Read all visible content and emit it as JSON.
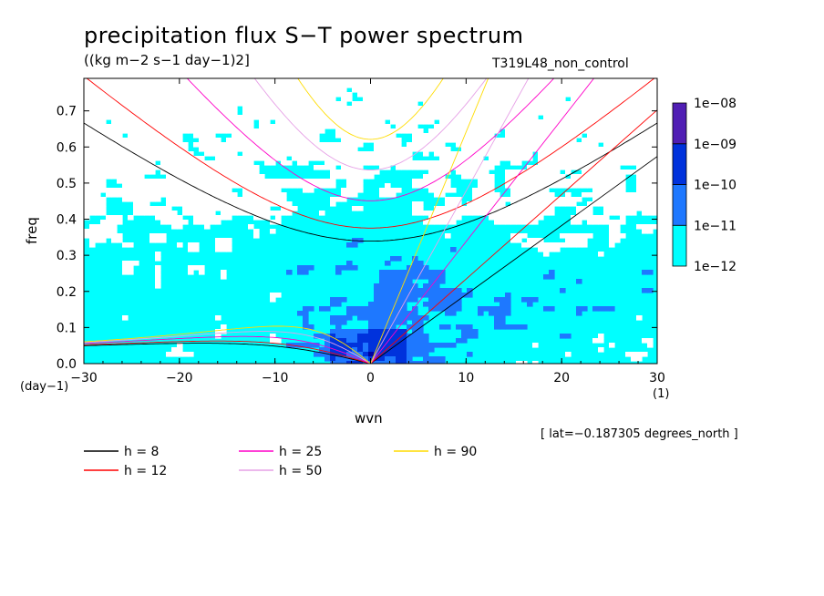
{
  "title": "precipitation flux S−T power spectrum",
  "subtitle": "((kg m−2 s−1 day−1)2]",
  "run_label": "T319L48_non_control",
  "lat_note": "[ lat=−0.187305 degrees_north ]",
  "chart_data": {
    "type": "heatmap",
    "title": "precipitation flux S−T power spectrum",
    "subtitle": "((kg m−2 s−1 day−1)2]",
    "xlabel": "wvn",
    "ylabel": "freq",
    "x_unit": "(1)",
    "y_unit": "(day−1)",
    "xlim": [
      -30,
      30
    ],
    "ylim": [
      0,
      0.79
    ],
    "x_ticks": [
      -30,
      -20,
      -10,
      0,
      10,
      20,
      30
    ],
    "x_tick_labels": [
      "−30",
      "−20",
      "−10",
      "0",
      "10",
      "20",
      "30"
    ],
    "y_ticks": [
      0,
      0.1,
      0.2,
      0.3,
      0.4,
      0.5,
      0.6,
      0.7
    ],
    "y_tick_labels": [
      "0.0",
      "0.1",
      "0.2",
      "0.3",
      "0.4",
      "0.5",
      "0.6",
      "0.7"
    ],
    "colorbar": {
      "levels": [
        "1e−12",
        "1e−11",
        "1e−10",
        "1e−09",
        "1e−08"
      ],
      "colors": [
        "#00ffff",
        "#1e78ff",
        "#0032dc",
        "#0000a0",
        "#501eb4"
      ]
    },
    "background_color": "#ffffff",
    "dispersion_curves": {
      "equivalent_depths": [
        8,
        12,
        25,
        50,
        90
      ],
      "legend": [
        {
          "label": "h =  8",
          "color": "#000000"
        },
        {
          "label": "h = 12",
          "color": "#ff0000"
        },
        {
          "label": "h = 25",
          "color": "#ff00c8"
        },
        {
          "label": "h = 50",
          "color": "#e6a0e6"
        },
        {
          "label": "h = 90",
          "color": "#ffdc00"
        }
      ],
      "legend_placement": "below-plot",
      "families": [
        "equatorial-rossby",
        "inertia-gravity n=1",
        "kelvin"
      ]
    },
    "grid": false
  }
}
